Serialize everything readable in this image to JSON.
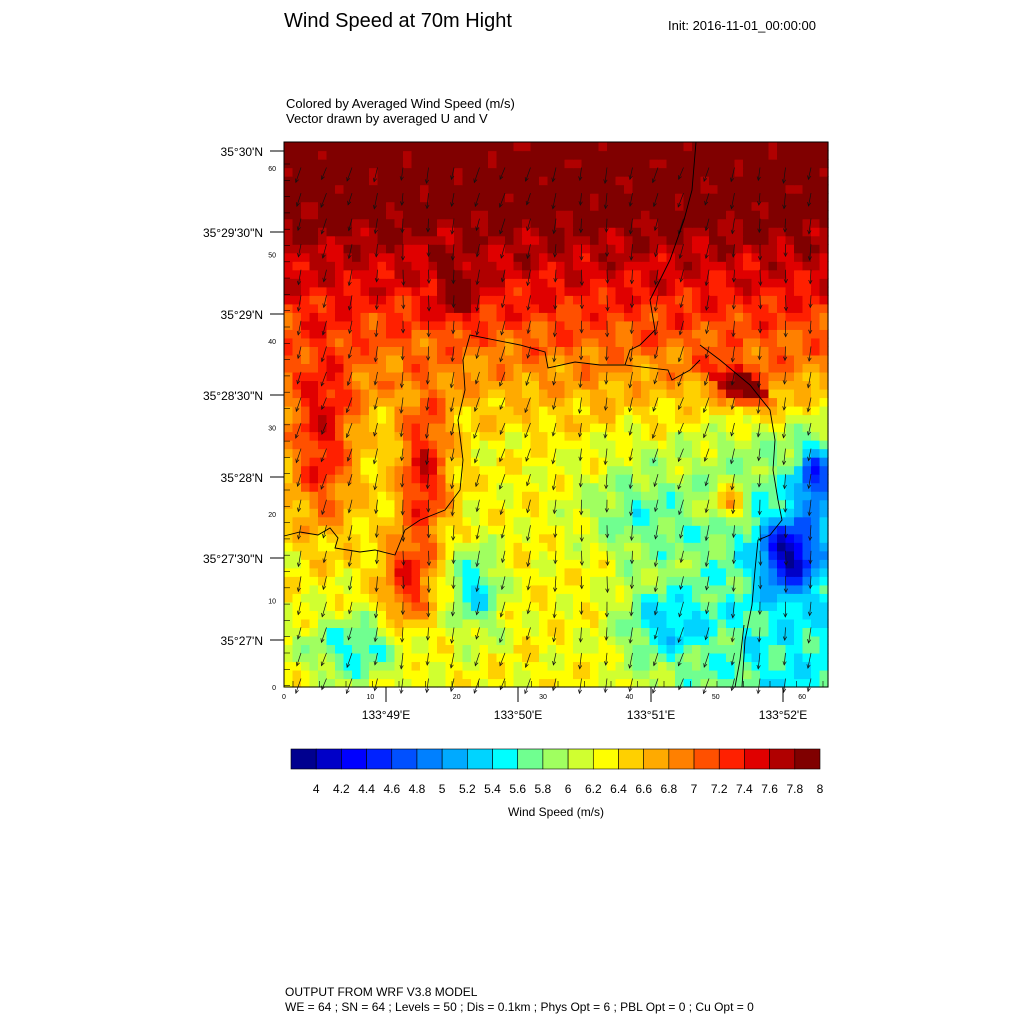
{
  "title": "Wind Speed at 70m Hight",
  "init": "Init: 2016-11-01_00:00:00",
  "subtitle1": "Colored by Averaged Wind Speed (m/s)",
  "subtitle2": "Vector drawn by averaged U and V",
  "footer1": "OUTPUT FROM WRF V3.8 MODEL",
  "footer2": "WE = 64 ; SN = 64 ; Levels = 50 ; Dis = 0.1km ; Phys Opt = 6 ; PBL Opt = 0 ; Cu Opt = 0",
  "chart_data": {
    "type": "heatmap",
    "grid": {
      "we": 64,
      "sn": 64,
      "xlim": [
        0,
        63
      ],
      "ylim": [
        0,
        63
      ]
    },
    "lat_ticks": [
      "35°27'N",
      "35°27'30\"N",
      "35°28'N",
      "35°28'30\"N",
      "35°29'N",
      "35°29'30\"N",
      "35°30'N"
    ],
    "lon_ticks": [
      "133°49'E",
      "133°50'E",
      "133°51'E",
      "133°52'E"
    ],
    "x_grid_ticks": [
      "0",
      "10",
      "20",
      "30",
      "40",
      "50",
      "60"
    ],
    "y_grid_ticks": [
      "0",
      "10",
      "20",
      "30",
      "40",
      "50",
      "60"
    ],
    "colorbar": {
      "label": "Wind Speed (m/s)",
      "tick_labels": [
        "4",
        "4.2",
        "4.4",
        "4.6",
        "4.8",
        "5",
        "5.2",
        "5.4",
        "5.6",
        "5.8",
        "6",
        "6.2",
        "6.4",
        "6.6",
        "6.8",
        "7",
        "7.2",
        "7.4",
        "7.6",
        "7.8",
        "8"
      ],
      "colors": [
        "#00008f",
        "#0000c8",
        "#0000ff",
        "#0022ff",
        "#0050ff",
        "#0080ff",
        "#00aaff",
        "#00d4ff",
        "#00ffff",
        "#70ff90",
        "#a0ff60",
        "#d0ff30",
        "#ffff00",
        "#ffd000",
        "#ffaa00",
        "#ff8000",
        "#ff5000",
        "#ff2000",
        "#e00000",
        "#b00000",
        "#800000"
      ]
    },
    "field_summary": [
      {
        "region": "north",
        "value": 7.9
      },
      {
        "region": "central-west",
        "value": 7.5
      },
      {
        "region": "center",
        "value": 6.5
      },
      {
        "region": "east",
        "value": 5.6
      },
      {
        "region": "southeast",
        "value": 5.0
      }
    ],
    "vectors": {
      "direction": "south-southwest",
      "spacing": 3
    }
  }
}
